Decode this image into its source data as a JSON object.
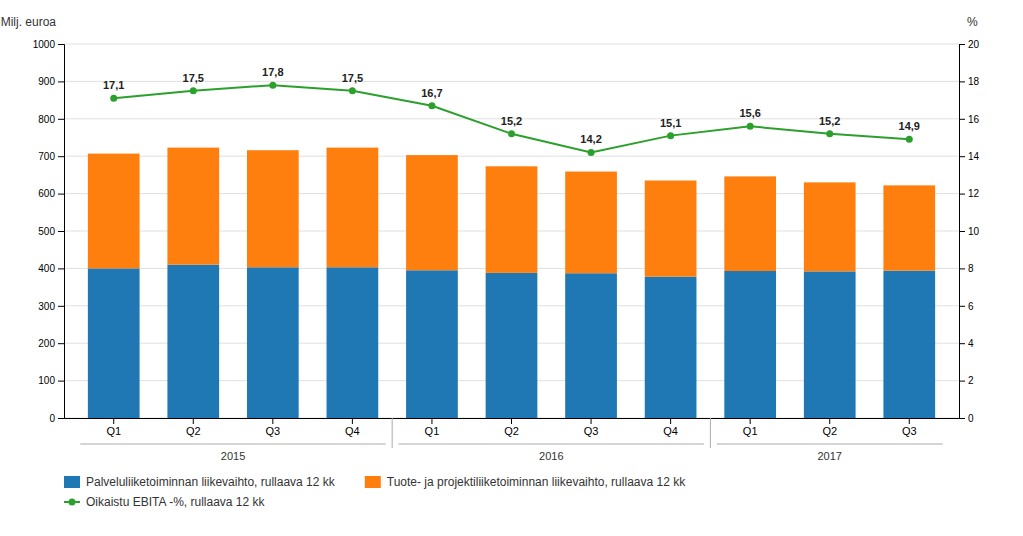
{
  "chart_data": {
    "type": "bar",
    "stacked": true,
    "categories": [
      "Q1",
      "Q2",
      "Q3",
      "Q4",
      "Q1",
      "Q2",
      "Q3",
      "Q4",
      "Q1",
      "Q2",
      "Q3"
    ],
    "annotations": [
      "2015",
      "2016",
      "2017"
    ],
    "y_label": "Milj. euroa",
    "y2_label": "%",
    "ylim": [
      0,
      1000
    ],
    "yticks": [
      0,
      100,
      200,
      300,
      400,
      500,
      600,
      700,
      800,
      900,
      1000
    ],
    "y2lim": [
      0,
      20
    ],
    "y2ticks": [
      0,
      2,
      4,
      6,
      8,
      10,
      12,
      14,
      16,
      18,
      20
    ],
    "grid": true,
    "legend": "bottom",
    "series": [
      {
        "name": "Palveluliiketoiminnan liikevaihto, rullaava 12 kk",
        "values": [
          400,
          410,
          403,
          403,
          395,
          388,
          387,
          378,
          393,
          392,
          394
        ]
      },
      {
        "name": "Tuote- ja projektiliiketoiminnan liikevaihto, rullaava 12 kk",
        "values": [
          307,
          313,
          313,
          320,
          308,
          285,
          272,
          257,
          253,
          238,
          228
        ]
      },
      {
        "name": "Oikaistu EBITA -%, rullaava 12 kk",
        "type": "line",
        "axis": "y2",
        "marker": "circle",
        "data_labels": true,
        "values": [
          17.1,
          17.5,
          17.8,
          17.5,
          16.7,
          15.2,
          14.2,
          15.1,
          15.6,
          15.2,
          14.9
        ],
        "value_labels": [
          "17,1",
          "17,5",
          "17,8",
          "17,5",
          "16,7",
          "15,2",
          "14,2",
          "15,1",
          "15,6",
          "15,2",
          "14,9"
        ]
      }
    ]
  }
}
